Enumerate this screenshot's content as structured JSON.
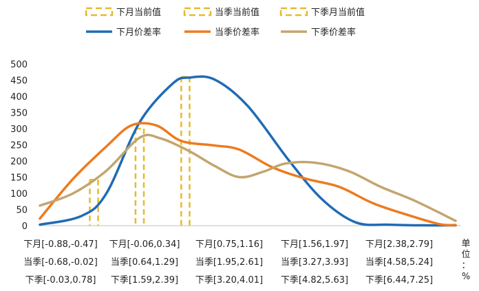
{
  "chart_data": {
    "type": "line",
    "legend": {
      "placement": "top",
      "entries": [
        "下月当前值",
        "当季当前值",
        "下季月当前值",
        "下月价差率",
        "当季价差率",
        "下季价差率"
      ]
    },
    "ylim": [
      0,
      500
    ],
    "y_ticks": [
      "500",
      "450",
      "400",
      "350",
      "300",
      "250",
      "200",
      "150",
      "100",
      "50",
      "0"
    ],
    "category_labels": [
      [
        "下月[-0.88,-0.47]",
        "当季[-0.68,-0.02]",
        "下季[-0.03,0.78]"
      ],
      [
        "下月[-0.06,0.34]",
        "当季[0.64,1.29]",
        "下季[1.59,2.39]"
      ],
      [
        "下月[0.75,1.16]",
        "当季[1.95,2.61]",
        "下季[3.20,4.01]"
      ],
      [
        "下月[1.56,1.97]",
        "当季[3.27,3.93]",
        "下季[4.82,5.63]"
      ],
      [
        "下月[2.38,2.79]",
        "当季[4.58,5.24]",
        "下季[6.44,7.25]"
      ]
    ],
    "unit_label": "单位：%",
    "x_range": [
      0,
      10
    ],
    "series": [
      {
        "name": "下月价差率",
        "color": "#1f6bb5",
        "points": [
          [
            0.0,
            3
          ],
          [
            1.0,
            30
          ],
          [
            1.6,
            100
          ],
          [
            2.4,
            320
          ],
          [
            3.2,
            440
          ],
          [
            3.6,
            458
          ],
          [
            4.2,
            452
          ],
          [
            5.0,
            370
          ],
          [
            6.0,
            200
          ],
          [
            6.8,
            80
          ],
          [
            7.6,
            10
          ],
          [
            8.4,
            3
          ],
          [
            9.2,
            1
          ],
          [
            10.0,
            1
          ]
        ]
      },
      {
        "name": "当季价差率",
        "color": "#ee7a1e",
        "points": [
          [
            0.0,
            22
          ],
          [
            0.8,
            145
          ],
          [
            1.6,
            245
          ],
          [
            2.2,
            310
          ],
          [
            2.8,
            310
          ],
          [
            3.4,
            262
          ],
          [
            4.2,
            248
          ],
          [
            4.8,
            235
          ],
          [
            5.6,
            180
          ],
          [
            6.4,
            145
          ],
          [
            7.2,
            120
          ],
          [
            8.0,
            70
          ],
          [
            8.8,
            35
          ],
          [
            9.6,
            5
          ],
          [
            10.0,
            2
          ]
        ]
      },
      {
        "name": "下季价差率",
        "color": "#c3a56e",
        "points": [
          [
            0.0,
            62
          ],
          [
            0.8,
            100
          ],
          [
            1.6,
            170
          ],
          [
            2.4,
            272
          ],
          [
            2.9,
            270
          ],
          [
            3.6,
            230
          ],
          [
            4.2,
            185
          ],
          [
            4.8,
            150
          ],
          [
            5.4,
            168
          ],
          [
            5.9,
            192
          ],
          [
            6.6,
            195
          ],
          [
            7.4,
            170
          ],
          [
            8.2,
            120
          ],
          [
            9.0,
            78
          ],
          [
            10.0,
            15
          ]
        ]
      }
    ],
    "current_value_markers": [
      {
        "name": "下月当前值",
        "color": "#e8b92a",
        "x": [
          1.2,
          1.4
        ],
        "value": 142
      },
      {
        "name": "当季当前值",
        "color": "#e8b92a",
        "x": [
          2.3,
          2.5
        ],
        "value": 300
      },
      {
        "name": "下季月当前值",
        "color": "#e8b92a",
        "x": [
          3.4,
          3.6
        ],
        "value": 460
      }
    ]
  }
}
